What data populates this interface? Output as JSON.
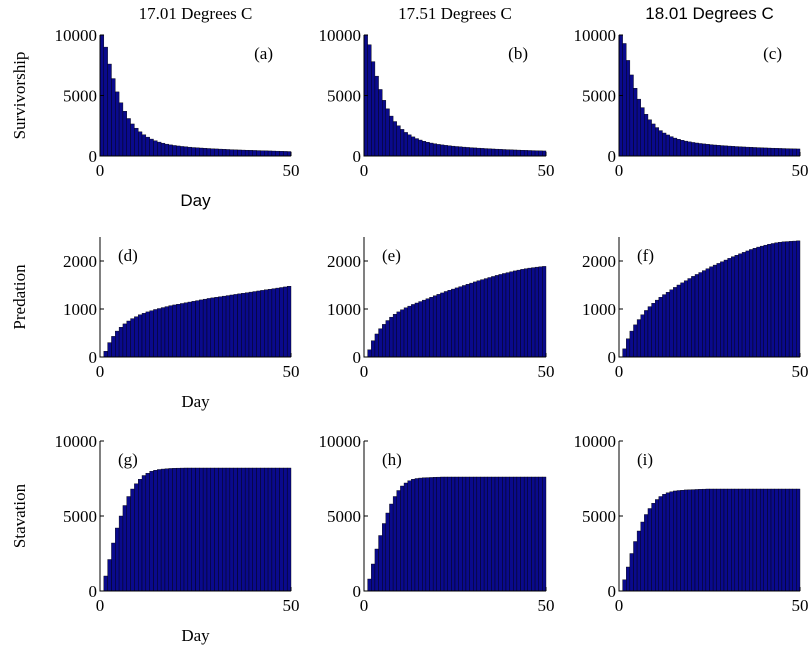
{
  "colors": {
    "bar_fill": "#0a0a8c",
    "bar_edge": "#000000",
    "background": "#ffffff"
  },
  "chart_data": [
    {
      "type": "bar",
      "panel_label": "(a)",
      "title": "17.01 Degrees C",
      "xlabel": "Day",
      "ylabel": "Survivorship",
      "xlim": [
        0,
        50
      ],
      "ylim": [
        0,
        10000
      ],
      "xticks": [
        "0",
        "50"
      ],
      "yticks": [
        "0",
        "5000",
        "10000"
      ],
      "x": [
        1,
        2,
        3,
        4,
        5,
        6,
        7,
        8,
        9,
        10,
        11,
        12,
        13,
        14,
        15,
        16,
        17,
        18,
        19,
        20,
        21,
        22,
        23,
        24,
        25,
        26,
        27,
        28,
        29,
        30,
        31,
        32,
        33,
        34,
        35,
        36,
        37,
        38,
        39,
        40,
        41,
        42,
        43,
        44,
        45,
        46,
        47,
        48,
        49,
        50
      ],
      "values": [
        10000,
        9000,
        7600,
        6400,
        5300,
        4400,
        3700,
        3100,
        2650,
        2300,
        2000,
        1760,
        1560,
        1400,
        1260,
        1150,
        1060,
        980,
        920,
        870,
        830,
        790,
        760,
        730,
        700,
        680,
        660,
        640,
        620,
        600,
        585,
        570,
        555,
        540,
        525,
        510,
        500,
        490,
        480,
        470,
        460,
        450,
        440,
        430,
        420,
        410,
        400,
        390,
        380,
        370
      ]
    },
    {
      "type": "bar",
      "panel_label": "(b)",
      "title": "17.51 Degrees C",
      "xlabel": "",
      "ylabel": "",
      "xlim": [
        0,
        50
      ],
      "ylim": [
        0,
        10000
      ],
      "xticks": [
        "0",
        "50"
      ],
      "yticks": [
        "0",
        "5000",
        "10000"
      ],
      "x": [
        1,
        2,
        3,
        4,
        5,
        6,
        7,
        8,
        9,
        10,
        11,
        12,
        13,
        14,
        15,
        16,
        17,
        18,
        19,
        20,
        21,
        22,
        23,
        24,
        25,
        26,
        27,
        28,
        29,
        30,
        31,
        32,
        33,
        34,
        35,
        36,
        37,
        38,
        39,
        40,
        41,
        42,
        43,
        44,
        45,
        46,
        47,
        48,
        49,
        50
      ],
      "values": [
        10000,
        9200,
        7800,
        6600,
        5500,
        4600,
        3900,
        3300,
        2850,
        2500,
        2200,
        1950,
        1750,
        1580,
        1440,
        1320,
        1220,
        1140,
        1070,
        1010,
        960,
        920,
        880,
        845,
        815,
        785,
        760,
        735,
        710,
        690,
        670,
        650,
        632,
        615,
        598,
        582,
        567,
        552,
        538,
        525,
        512,
        500,
        489,
        478,
        467,
        457,
        447,
        437,
        428,
        419
      ]
    },
    {
      "type": "bar",
      "panel_label": "(c)",
      "title": "18.01 Degrees C",
      "xlabel": "",
      "ylabel": "",
      "xlim": [
        0,
        50
      ],
      "ylim": [
        0,
        10000
      ],
      "xticks": [
        "0",
        "50"
      ],
      "yticks": [
        "0",
        "5000",
        "10000"
      ],
      "x": [
        1,
        2,
        3,
        4,
        5,
        6,
        7,
        8,
        9,
        10,
        11,
        12,
        13,
        14,
        15,
        16,
        17,
        18,
        19,
        20,
        21,
        22,
        23,
        24,
        25,
        26,
        27,
        28,
        29,
        30,
        31,
        32,
        33,
        34,
        35,
        36,
        37,
        38,
        39,
        40,
        41,
        42,
        43,
        44,
        45,
        46,
        47,
        48,
        49,
        50
      ],
      "values": [
        10000,
        9300,
        7900,
        6700,
        5600,
        4700,
        4000,
        3450,
        3000,
        2650,
        2350,
        2100,
        1900,
        1740,
        1600,
        1480,
        1380,
        1300,
        1230,
        1170,
        1120,
        1075,
        1035,
        1000,
        968,
        938,
        910,
        885,
        862,
        840,
        820,
        800,
        782,
        765,
        749,
        734,
        720,
        706,
        693,
        681,
        669,
        658,
        647,
        637,
        627,
        618,
        609,
        600,
        592,
        584
      ]
    },
    {
      "type": "bar",
      "panel_label": "(d)",
      "title": "",
      "xlabel": "Day",
      "ylabel": "Predation",
      "xlim": [
        0,
        50
      ],
      "ylim": [
        0,
        2500
      ],
      "xticks": [
        "0",
        "50"
      ],
      "yticks": [
        "0",
        "1000",
        "2000"
      ],
      "x": [
        1,
        2,
        3,
        4,
        5,
        6,
        7,
        8,
        9,
        10,
        11,
        12,
        13,
        14,
        15,
        16,
        17,
        18,
        19,
        20,
        21,
        22,
        23,
        24,
        25,
        26,
        27,
        28,
        29,
        30,
        31,
        32,
        33,
        34,
        35,
        36,
        37,
        38,
        39,
        40,
        41,
        42,
        43,
        44,
        45,
        46,
        47,
        48,
        49,
        50
      ],
      "values": [
        0,
        120,
        300,
        430,
        540,
        620,
        690,
        750,
        800,
        840,
        880,
        910,
        940,
        965,
        990,
        1010,
        1030,
        1050,
        1070,
        1085,
        1100,
        1115,
        1130,
        1145,
        1160,
        1175,
        1190,
        1205,
        1220,
        1232,
        1244,
        1256,
        1268,
        1280,
        1292,
        1304,
        1316,
        1328,
        1340,
        1352,
        1364,
        1376,
        1388,
        1400,
        1412,
        1424,
        1436,
        1448,
        1460,
        1475
      ]
    },
    {
      "type": "bar",
      "panel_label": "(e)",
      "title": "",
      "xlabel": "",
      "ylabel": "",
      "xlim": [
        0,
        50
      ],
      "ylim": [
        0,
        2500
      ],
      "xticks": [
        "0",
        "50"
      ],
      "yticks": [
        "0",
        "1000",
        "2000"
      ],
      "x": [
        1,
        2,
        3,
        4,
        5,
        6,
        7,
        8,
        9,
        10,
        11,
        12,
        13,
        14,
        15,
        16,
        17,
        18,
        19,
        20,
        21,
        22,
        23,
        24,
        25,
        26,
        27,
        28,
        29,
        30,
        31,
        32,
        33,
        34,
        35,
        36,
        37,
        38,
        39,
        40,
        41,
        42,
        43,
        44,
        45,
        46,
        47,
        48,
        49,
        50
      ],
      "values": [
        0,
        150,
        340,
        480,
        590,
        680,
        760,
        830,
        890,
        940,
        985,
        1025,
        1060,
        1095,
        1125,
        1155,
        1185,
        1215,
        1245,
        1275,
        1305,
        1335,
        1365,
        1390,
        1415,
        1440,
        1465,
        1490,
        1515,
        1540,
        1565,
        1590,
        1612,
        1634,
        1656,
        1678,
        1700,
        1720,
        1740,
        1758,
        1776,
        1794,
        1810,
        1826,
        1840,
        1852,
        1862,
        1872,
        1880,
        1888
      ]
    },
    {
      "type": "bar",
      "panel_label": "(f)",
      "title": "",
      "xlabel": "",
      "ylabel": "",
      "xlim": [
        0,
        50
      ],
      "ylim": [
        0,
        2500
      ],
      "xticks": [
        "0",
        "50"
      ],
      "yticks": [
        "0",
        "1000",
        "2000"
      ],
      "x": [
        1,
        2,
        3,
        4,
        5,
        6,
        7,
        8,
        9,
        10,
        11,
        12,
        13,
        14,
        15,
        16,
        17,
        18,
        19,
        20,
        21,
        22,
        23,
        24,
        25,
        26,
        27,
        28,
        29,
        30,
        31,
        32,
        33,
        34,
        35,
        36,
        37,
        38,
        39,
        40,
        41,
        42,
        43,
        44,
        45,
        46,
        47,
        48,
        49,
        50
      ],
      "values": [
        0,
        170,
        380,
        540,
        670,
        780,
        880,
        970,
        1050,
        1120,
        1185,
        1245,
        1300,
        1350,
        1400,
        1450,
        1500,
        1545,
        1590,
        1635,
        1680,
        1720,
        1760,
        1800,
        1840,
        1880,
        1915,
        1950,
        1985,
        2020,
        2055,
        2090,
        2120,
        2150,
        2180,
        2210,
        2240,
        2265,
        2290,
        2310,
        2330,
        2350,
        2365,
        2380,
        2390,
        2400,
        2405,
        2410,
        2415,
        2420
      ]
    },
    {
      "type": "bar",
      "panel_label": "(g)",
      "title": "",
      "xlabel": "Day",
      "ylabel": "Stavation",
      "xlim": [
        0,
        50
      ],
      "ylim": [
        0,
        10000
      ],
      "xticks": [
        "0",
        "50"
      ],
      "yticks": [
        "0",
        "5000",
        "10000"
      ],
      "x": [
        1,
        2,
        3,
        4,
        5,
        6,
        7,
        8,
        9,
        10,
        11,
        12,
        13,
        14,
        15,
        16,
        17,
        18,
        19,
        20,
        21,
        22,
        23,
        24,
        25,
        26,
        27,
        28,
        29,
        30,
        31,
        32,
        33,
        34,
        35,
        36,
        37,
        38,
        39,
        40,
        41,
        42,
        43,
        44,
        45,
        46,
        47,
        48,
        49,
        50
      ],
      "values": [
        0,
        1000,
        2100,
        3200,
        4200,
        5000,
        5700,
        6300,
        6800,
        7150,
        7450,
        7700,
        7850,
        7980,
        8050,
        8100,
        8130,
        8150,
        8170,
        8180,
        8190,
        8195,
        8200,
        8200,
        8200,
        8200,
        8200,
        8200,
        8200,
        8200,
        8200,
        8200,
        8200,
        8200,
        8200,
        8200,
        8200,
        8200,
        8200,
        8200,
        8200,
        8200,
        8200,
        8200,
        8200,
        8200,
        8200,
        8200,
        8200,
        8200
      ]
    },
    {
      "type": "bar",
      "panel_label": "(h)",
      "title": "",
      "xlabel": "",
      "ylabel": "",
      "xlim": [
        0,
        50
      ],
      "ylim": [
        0,
        10000
      ],
      "xticks": [
        "0",
        "50"
      ],
      "yticks": [
        "0",
        "5000",
        "10000"
      ],
      "x": [
        1,
        2,
        3,
        4,
        5,
        6,
        7,
        8,
        9,
        10,
        11,
        12,
        13,
        14,
        15,
        16,
        17,
        18,
        19,
        20,
        21,
        22,
        23,
        24,
        25,
        26,
        27,
        28,
        29,
        30,
        31,
        32,
        33,
        34,
        35,
        36,
        37,
        38,
        39,
        40,
        41,
        42,
        43,
        44,
        45,
        46,
        47,
        48,
        49,
        50
      ],
      "values": [
        0,
        800,
        1800,
        2800,
        3700,
        4500,
        5200,
        5800,
        6300,
        6700,
        7000,
        7200,
        7350,
        7450,
        7500,
        7530,
        7550,
        7560,
        7570,
        7580,
        7590,
        7600,
        7600,
        7600,
        7600,
        7600,
        7600,
        7600,
        7600,
        7600,
        7600,
        7600,
        7600,
        7600,
        7600,
        7600,
        7600,
        7600,
        7600,
        7600,
        7600,
        7600,
        7600,
        7600,
        7600,
        7600,
        7600,
        7600,
        7600,
        7600
      ]
    },
    {
      "type": "bar",
      "panel_label": "(i)",
      "title": "",
      "xlabel": "",
      "ylabel": "",
      "xlim": [
        0,
        50
      ],
      "ylim": [
        0,
        10000
      ],
      "xticks": [
        "0",
        "50"
      ],
      "yticks": [
        "0",
        "5000",
        "10000"
      ],
      "x": [
        1,
        2,
        3,
        4,
        5,
        6,
        7,
        8,
        9,
        10,
        11,
        12,
        13,
        14,
        15,
        16,
        17,
        18,
        19,
        20,
        21,
        22,
        23,
        24,
        25,
        26,
        27,
        28,
        29,
        30,
        31,
        32,
        33,
        34,
        35,
        36,
        37,
        38,
        39,
        40,
        41,
        42,
        43,
        44,
        45,
        46,
        47,
        48,
        49,
        50
      ],
      "values": [
        0,
        750,
        1600,
        2500,
        3300,
        4000,
        4600,
        5100,
        5500,
        5850,
        6100,
        6300,
        6450,
        6550,
        6620,
        6670,
        6700,
        6720,
        6740,
        6750,
        6760,
        6770,
        6780,
        6790,
        6800,
        6800,
        6800,
        6800,
        6800,
        6800,
        6800,
        6800,
        6800,
        6800,
        6800,
        6800,
        6800,
        6800,
        6800,
        6800,
        6800,
        6800,
        6800,
        6800,
        6800,
        6800,
        6800,
        6800,
        6800,
        6800
      ]
    }
  ]
}
